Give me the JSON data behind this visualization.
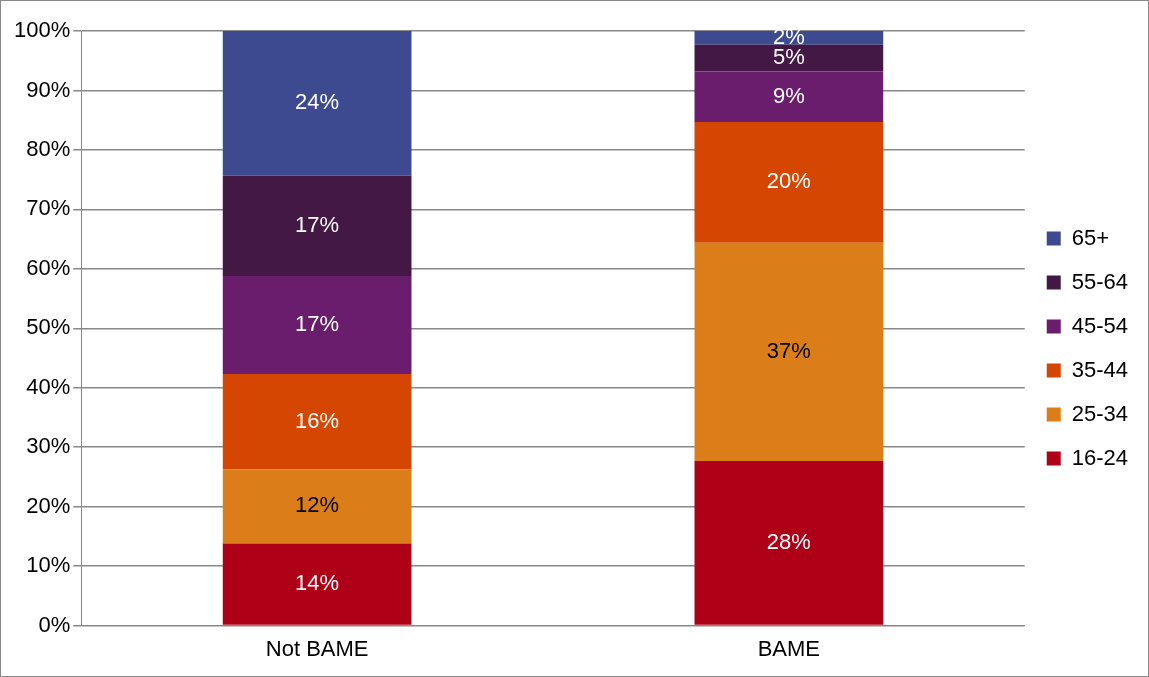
{
  "chart_data": {
    "type": "bar",
    "stacked": true,
    "categories": [
      "Not BAME",
      "BAME"
    ],
    "series": [
      {
        "name": "16-24",
        "color": "#ae0016",
        "values": [
          13.8,
          27.7
        ],
        "value_labels": [
          "14%",
          "28%"
        ]
      },
      {
        "name": "25-34",
        "color": "#db7e1a",
        "values": [
          12.5,
          36.7
        ],
        "value_labels": [
          "12%",
          "37%"
        ]
      },
      {
        "name": "35-44",
        "color": "#d54602",
        "values": [
          16.0,
          20.3
        ],
        "value_labels": [
          "16%",
          "20%"
        ]
      },
      {
        "name": "45-54",
        "color": "#6a1d6d",
        "values": [
          16.5,
          8.5
        ],
        "value_labels": [
          "17%",
          "9%"
        ]
      },
      {
        "name": "55-64",
        "color": "#431844",
        "values": [
          16.9,
          4.5
        ],
        "value_labels": [
          "17%",
          "5%"
        ]
      },
      {
        "name": "65+",
        "color": "#3d4a8f",
        "values": [
          24.3,
          2.3
        ],
        "value_labels": [
          "24%",
          "2%"
        ]
      }
    ],
    "ylim": [
      0,
      100
    ],
    "yticks": [
      {
        "value": 0,
        "label": "0%"
      },
      {
        "value": 10,
        "label": "10%"
      },
      {
        "value": 20,
        "label": "20%"
      },
      {
        "value": 30,
        "label": "30%"
      },
      {
        "value": 40,
        "label": "40%"
      },
      {
        "value": 50,
        "label": "50%"
      },
      {
        "value": 60,
        "label": "60%"
      },
      {
        "value": 70,
        "label": "70%"
      },
      {
        "value": 80,
        "label": "80%"
      },
      {
        "value": 90,
        "label": "90%"
      },
      {
        "value": 100,
        "label": "100%"
      }
    ],
    "grid": "y",
    "legend": "right"
  }
}
